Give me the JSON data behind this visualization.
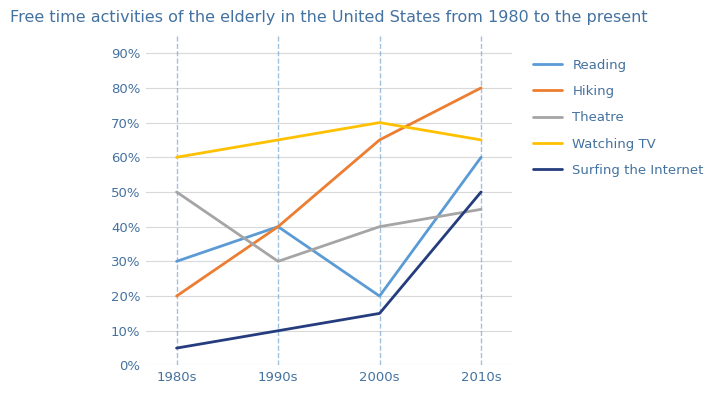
{
  "title": "Free time activities of the elderly in the United States from 1980 to the present",
  "categories": [
    "1980s",
    "1990s",
    "2000s",
    "2010s"
  ],
  "series": [
    {
      "name": "Reading",
      "values": [
        0.3,
        0.4,
        0.2,
        0.6
      ],
      "color": "#5B9BD5",
      "linewidth": 2.0
    },
    {
      "name": "Hiking",
      "values": [
        0.2,
        0.4,
        0.65,
        0.8
      ],
      "color": "#ED7D31",
      "linewidth": 2.0
    },
    {
      "name": "Theatre",
      "values": [
        0.5,
        0.3,
        0.4,
        0.45
      ],
      "color": "#A5A5A5",
      "linewidth": 2.0
    },
    {
      "name": "Watching TV",
      "values": [
        0.6,
        0.65,
        0.7,
        0.65
      ],
      "color": "#FFC000",
      "linewidth": 2.0
    },
    {
      "name": "Surfing the Internet",
      "values": [
        0.05,
        0.1,
        0.15,
        0.5
      ],
      "color": "#253D7F",
      "linewidth": 2.0
    }
  ],
  "ylim": [
    0,
    0.95
  ],
  "yticks": [
    0,
    0.1,
    0.2,
    0.3,
    0.4,
    0.5,
    0.6,
    0.7,
    0.8,
    0.9
  ],
  "ytick_labels": [
    "0%",
    "10%",
    "20%",
    "30%",
    "40%",
    "50%",
    "60%",
    "70%",
    "80%",
    "90%"
  ],
  "vline_color": "#7BA7CC",
  "vline_style": "--",
  "vline_alpha": 0.7,
  "vline_linewidth": 1.0,
  "grid_color": "#D9D9D9",
  "background_color": "#FFFFFF",
  "title_fontsize": 11.5,
  "legend_fontsize": 9.5,
  "tick_fontsize": 9.5,
  "tick_color": "#4472A0",
  "title_color": "#4472A0"
}
